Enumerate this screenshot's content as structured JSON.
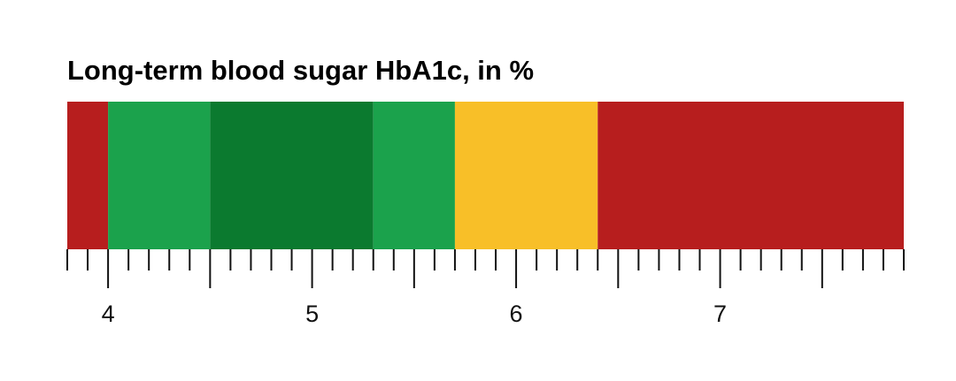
{
  "chart_data": {
    "type": "bar",
    "title": "Long-term blood sugar HbA1c, in %",
    "xlabel": "",
    "ylabel": "",
    "xlim": [
      3.8,
      7.9
    ],
    "grid": false,
    "legend": "none",
    "segments": [
      {
        "start": 3.8,
        "end": 4.0,
        "color": "#b71e1e"
      },
      {
        "start": 4.0,
        "end": 4.5,
        "color": "#1ba24c"
      },
      {
        "start": 4.5,
        "end": 5.3,
        "color": "#0b7a2f"
      },
      {
        "start": 5.3,
        "end": 5.7,
        "color": "#1ba24c"
      },
      {
        "start": 5.7,
        "end": 6.4,
        "color": "#f8bf28"
      },
      {
        "start": 6.4,
        "end": 7.9,
        "color": "#b71e1e"
      }
    ],
    "major_ticks": [
      4,
      5,
      6,
      7
    ],
    "tick_labels": [
      "4",
      "5",
      "6",
      "7"
    ],
    "half_ticks": [
      4.5,
      5.5,
      6.5,
      7.5
    ],
    "minor_step": 0.1
  }
}
